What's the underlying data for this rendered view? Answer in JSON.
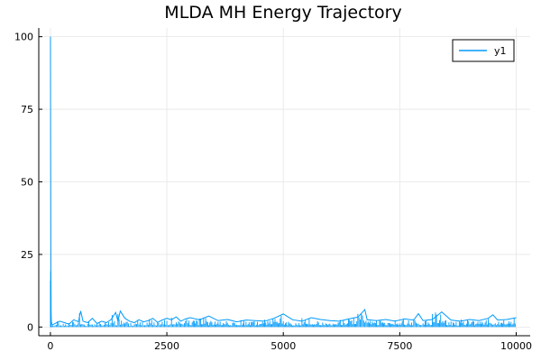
{
  "chart_data": {
    "type": "line",
    "title": "MLDA MH Energy Trajectory",
    "xlabel": "",
    "ylabel": "",
    "xlim": [
      -250,
      10300
    ],
    "ylim": [
      -3,
      103
    ],
    "xticks": [
      0,
      2500,
      5000,
      7500,
      10000
    ],
    "xtick_labels": [
      "0",
      "2500",
      "5000",
      "7500",
      "10000"
    ],
    "yticks": [
      0,
      25,
      50,
      75,
      100
    ],
    "ytick_labels": [
      "0",
      "25",
      "50",
      "75",
      "100"
    ],
    "grid": true,
    "legend_position": "top-right",
    "series": [
      {
        "name": "y1",
        "color": "#009af9",
        "x": [
          1,
          5,
          10,
          15,
          20,
          30,
          50,
          100,
          200,
          300,
          400,
          500,
          600,
          650,
          700,
          800,
          900,
          1000,
          1100,
          1200,
          1300,
          1400,
          1450,
          1500,
          1600,
          1700,
          1800,
          1900,
          2000,
          2100,
          2200,
          2300,
          2400,
          2500,
          2600,
          2700,
          2800,
          2900,
          3000,
          3200,
          3400,
          3600,
          3800,
          4000,
          4200,
          4400,
          4600,
          4800,
          5000,
          5200,
          5400,
          5600,
          5800,
          6000,
          6200,
          6400,
          6600,
          6750,
          6800,
          7000,
          7200,
          7400,
          7600,
          7800,
          7900,
          8000,
          8200,
          8400,
          8600,
          8800,
          9000,
          9200,
          9400,
          9500,
          9600,
          9800,
          10000
        ],
        "values": [
          100,
          60,
          20,
          5,
          2,
          1,
          0.8,
          1.2,
          2,
          1.5,
          1,
          2.5,
          1.8,
          5.5,
          2,
          1.5,
          3,
          1.2,
          2,
          1.5,
          2.5,
          5,
          2,
          5.5,
          3,
          2,
          1.5,
          2.5,
          1.8,
          2.2,
          3,
          1.6,
          2.4,
          3,
          2.5,
          3.5,
          2,
          2.8,
          3.2,
          2.5,
          3.8,
          2.2,
          2.6,
          1.8,
          2.4,
          2.2,
          2,
          3,
          4.5,
          2.5,
          2,
          3.2,
          2.6,
          2.2,
          2,
          2.8,
          3.4,
          6,
          2.5,
          2.2,
          2.6,
          2,
          2.8,
          2.4,
          4.6,
          2.2,
          2.6,
          5.2,
          2.4,
          2,
          2.6,
          2.2,
          3,
          4.2,
          2.4,
          2.6,
          3.2
        ]
      }
    ]
  }
}
